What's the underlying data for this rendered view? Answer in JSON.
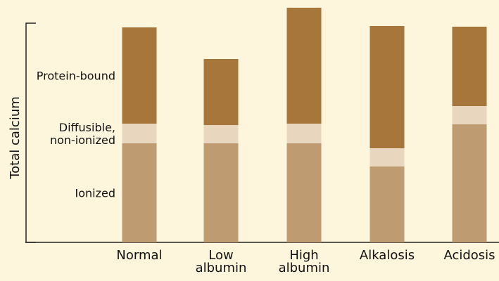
{
  "chart_data": {
    "type": "bar",
    "stacked": true,
    "title": "",
    "xlabel": "",
    "ylabel": "Total calcium",
    "categories": [
      "Normal",
      "Low albumin",
      "High albumin",
      "Alkalosis",
      "Acidosis"
    ],
    "category_lines": [
      [
        "Normal"
      ],
      [
        "Low",
        "albumin"
      ],
      [
        "High",
        "albumin"
      ],
      [
        "Alkalosis"
      ],
      [
        "Acidosis"
      ]
    ],
    "series": [
      {
        "name": "Ionized",
        "color": "#bf9b72",
        "values": [
          141,
          141,
          141,
          108,
          168
        ]
      },
      {
        "name": "Diffusible, non-ionized",
        "color": "#e8d6bf",
        "values": [
          28,
          26,
          28,
          26,
          26
        ]
      },
      {
        "name": "Protein-bound",
        "color": "#a6763a",
        "values": [
          137,
          94,
          165,
          174,
          113
        ]
      }
    ],
    "series_label_lines": [
      [
        "Ionized"
      ],
      [
        "Diffusible,",
        "non-ionized"
      ],
      [
        "Protein-bound"
      ]
    ],
    "ylim": [
      0,
      333
    ],
    "grid": false,
    "legend": "left, aligned to the Normal bar"
  }
}
